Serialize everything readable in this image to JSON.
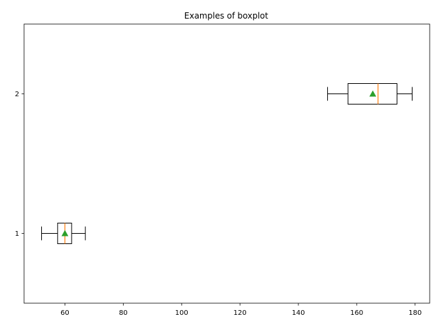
{
  "chart_data": {
    "type": "boxplot",
    "orientation": "horizontal",
    "title": "Examples of boxplot",
    "xlabel": "",
    "ylabel": "",
    "xlim": [
      46,
      185
    ],
    "ylim": [
      0.5,
      2.5
    ],
    "x_ticks": [
      60,
      80,
      100,
      120,
      140,
      160,
      180
    ],
    "x_tick_labels": [
      "60",
      "80",
      "100",
      "120",
      "140",
      "160",
      "180"
    ],
    "y_ticks": [
      1,
      2
    ],
    "y_tick_labels": [
      "1",
      "2"
    ],
    "grid": false,
    "boxes": [
      {
        "position": 1,
        "whisker_low": 52,
        "q1": 57.5,
        "median": 60,
        "q3": 62.3,
        "whisker_high": 67,
        "mean": 60
      },
      {
        "position": 2,
        "whisker_low": 150,
        "q1": 157,
        "median": 167.3,
        "q3": 173.8,
        "whisker_high": 179,
        "mean": 165.5
      }
    ],
    "colors": {
      "box": "#000000",
      "median": "#ff7f0e",
      "mean": "#2ca02c"
    }
  }
}
